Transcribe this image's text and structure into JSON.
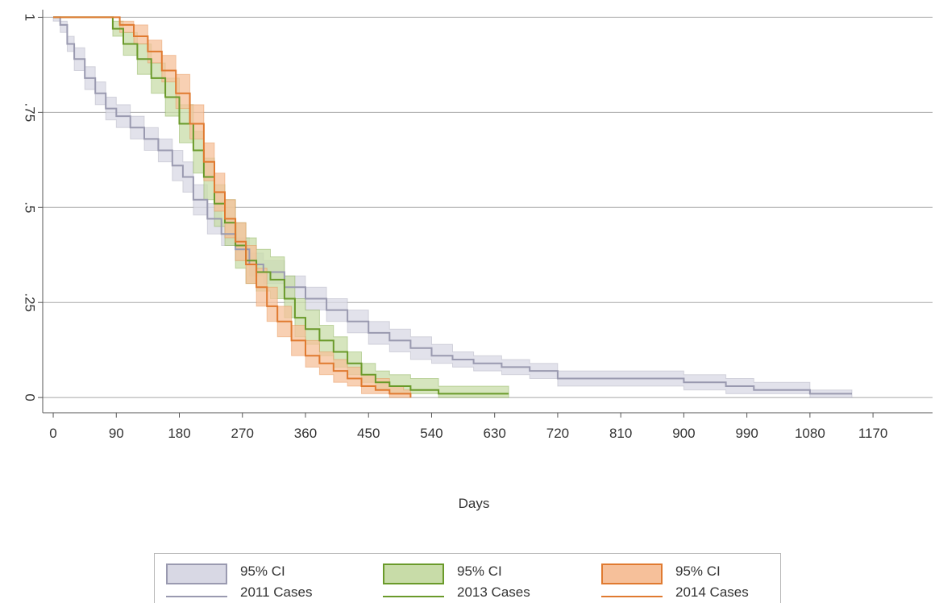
{
  "chart_data": {
    "type": "line",
    "title": "",
    "xlabel": "Days",
    "ylabel": "",
    "xlim": [
      -15,
      1255
    ],
    "ylim": [
      -0.04,
      1.02
    ],
    "x_ticks": [
      0,
      90,
      180,
      270,
      360,
      450,
      540,
      630,
      720,
      810,
      900,
      990,
      1080,
      1170
    ],
    "y_ticks": [
      0,
      0.25,
      0.5,
      0.75,
      1
    ],
    "y_tick_labels": [
      "0",
      ".25",
      ".5",
      ".75",
      "1"
    ],
    "grid": "horizontal",
    "legend_position": "bottom",
    "series": [
      {
        "name": "2011 Cases",
        "ci_label": "95% CI",
        "color": "#9a9ab0",
        "fill": "#d8d8e4",
        "points": [
          [
            0,
            1.0
          ],
          [
            10,
            0.98
          ],
          [
            20,
            0.93
          ],
          [
            30,
            0.89
          ],
          [
            45,
            0.84
          ],
          [
            60,
            0.8
          ],
          [
            75,
            0.76
          ],
          [
            90,
            0.74
          ],
          [
            110,
            0.71
          ],
          [
            130,
            0.68
          ],
          [
            150,
            0.65
          ],
          [
            170,
            0.61
          ],
          [
            185,
            0.58
          ],
          [
            200,
            0.52
          ],
          [
            220,
            0.47
          ],
          [
            240,
            0.43
          ],
          [
            260,
            0.39
          ],
          [
            280,
            0.35
          ],
          [
            300,
            0.33
          ],
          [
            330,
            0.29
          ],
          [
            360,
            0.26
          ],
          [
            390,
            0.23
          ],
          [
            420,
            0.2
          ],
          [
            450,
            0.17
          ],
          [
            480,
            0.15
          ],
          [
            510,
            0.13
          ],
          [
            540,
            0.11
          ],
          [
            570,
            0.1
          ],
          [
            600,
            0.09
          ],
          [
            640,
            0.08
          ],
          [
            680,
            0.07
          ],
          [
            720,
            0.05
          ],
          [
            800,
            0.05
          ],
          [
            900,
            0.04
          ],
          [
            960,
            0.03
          ],
          [
            1000,
            0.02
          ],
          [
            1080,
            0.01
          ],
          [
            1140,
            0.01
          ]
        ],
        "ci_lower": [
          [
            0,
            0.99
          ],
          [
            10,
            0.96
          ],
          [
            20,
            0.91
          ],
          [
            30,
            0.86
          ],
          [
            45,
            0.81
          ],
          [
            60,
            0.77
          ],
          [
            75,
            0.73
          ],
          [
            90,
            0.71
          ],
          [
            110,
            0.68
          ],
          [
            130,
            0.65
          ],
          [
            150,
            0.62
          ],
          [
            170,
            0.57
          ],
          [
            185,
            0.54
          ],
          [
            200,
            0.48
          ],
          [
            220,
            0.43
          ],
          [
            240,
            0.4
          ],
          [
            260,
            0.36
          ],
          [
            280,
            0.32
          ],
          [
            300,
            0.3
          ],
          [
            330,
            0.26
          ],
          [
            360,
            0.23
          ],
          [
            390,
            0.2
          ],
          [
            420,
            0.17
          ],
          [
            450,
            0.14
          ],
          [
            480,
            0.12
          ],
          [
            510,
            0.1
          ],
          [
            540,
            0.09
          ],
          [
            570,
            0.08
          ],
          [
            600,
            0.07
          ],
          [
            640,
            0.06
          ],
          [
            680,
            0.05
          ],
          [
            720,
            0.03
          ],
          [
            800,
            0.03
          ],
          [
            900,
            0.02
          ],
          [
            960,
            0.01
          ],
          [
            1000,
            0.01
          ],
          [
            1080,
            0.0
          ],
          [
            1140,
            0.0
          ]
        ],
        "ci_upper": [
          [
            0,
            1.0
          ],
          [
            10,
            0.99
          ],
          [
            20,
            0.95
          ],
          [
            30,
            0.92
          ],
          [
            45,
            0.87
          ],
          [
            60,
            0.83
          ],
          [
            75,
            0.79
          ],
          [
            90,
            0.77
          ],
          [
            110,
            0.74
          ],
          [
            130,
            0.71
          ],
          [
            150,
            0.68
          ],
          [
            170,
            0.65
          ],
          [
            185,
            0.62
          ],
          [
            200,
            0.56
          ],
          [
            220,
            0.51
          ],
          [
            240,
            0.46
          ],
          [
            260,
            0.42
          ],
          [
            280,
            0.38
          ],
          [
            300,
            0.36
          ],
          [
            330,
            0.32
          ],
          [
            360,
            0.29
          ],
          [
            390,
            0.26
          ],
          [
            420,
            0.23
          ],
          [
            450,
            0.2
          ],
          [
            480,
            0.18
          ],
          [
            510,
            0.16
          ],
          [
            540,
            0.14
          ],
          [
            570,
            0.12
          ],
          [
            600,
            0.11
          ],
          [
            640,
            0.1
          ],
          [
            680,
            0.09
          ],
          [
            720,
            0.07
          ],
          [
            800,
            0.07
          ],
          [
            900,
            0.06
          ],
          [
            960,
            0.05
          ],
          [
            1000,
            0.04
          ],
          [
            1080,
            0.02
          ],
          [
            1140,
            0.01
          ]
        ]
      },
      {
        "name": "2013 Cases",
        "ci_label": "95% CI",
        "color": "#6a9a2a",
        "fill": "#c8dca8",
        "points": [
          [
            0,
            1.0
          ],
          [
            75,
            1.0
          ],
          [
            85,
            0.97
          ],
          [
            100,
            0.93
          ],
          [
            120,
            0.89
          ],
          [
            140,
            0.84
          ],
          [
            160,
            0.79
          ],
          [
            180,
            0.72
          ],
          [
            200,
            0.65
          ],
          [
            215,
            0.58
          ],
          [
            230,
            0.51
          ],
          [
            245,
            0.46
          ],
          [
            260,
            0.4
          ],
          [
            275,
            0.36
          ],
          [
            290,
            0.33
          ],
          [
            310,
            0.31
          ],
          [
            330,
            0.26
          ],
          [
            345,
            0.21
          ],
          [
            360,
            0.18
          ],
          [
            380,
            0.15
          ],
          [
            400,
            0.12
          ],
          [
            420,
            0.09
          ],
          [
            440,
            0.06
          ],
          [
            460,
            0.04
          ],
          [
            480,
            0.03
          ],
          [
            510,
            0.02
          ],
          [
            550,
            0.01
          ],
          [
            650,
            0.01
          ]
        ],
        "ci_lower": [
          [
            0,
            1.0
          ],
          [
            75,
            1.0
          ],
          [
            85,
            0.95
          ],
          [
            100,
            0.9
          ],
          [
            120,
            0.85
          ],
          [
            140,
            0.8
          ],
          [
            160,
            0.74
          ],
          [
            180,
            0.67
          ],
          [
            200,
            0.59
          ],
          [
            215,
            0.52
          ],
          [
            230,
            0.45
          ],
          [
            245,
            0.4
          ],
          [
            260,
            0.34
          ],
          [
            275,
            0.3
          ],
          [
            290,
            0.28
          ],
          [
            310,
            0.26
          ],
          [
            330,
            0.21
          ],
          [
            345,
            0.16
          ],
          [
            360,
            0.14
          ],
          [
            380,
            0.11
          ],
          [
            400,
            0.08
          ],
          [
            420,
            0.06
          ],
          [
            440,
            0.04
          ],
          [
            460,
            0.02
          ],
          [
            480,
            0.01
          ],
          [
            510,
            0.01
          ],
          [
            550,
            0.0
          ],
          [
            650,
            0.0
          ]
        ],
        "ci_upper": [
          [
            0,
            1.0
          ],
          [
            75,
            1.0
          ],
          [
            85,
            0.99
          ],
          [
            100,
            0.96
          ],
          [
            120,
            0.93
          ],
          [
            140,
            0.88
          ],
          [
            160,
            0.84
          ],
          [
            180,
            0.77
          ],
          [
            200,
            0.7
          ],
          [
            215,
            0.63
          ],
          [
            230,
            0.56
          ],
          [
            245,
            0.52
          ],
          [
            260,
            0.46
          ],
          [
            275,
            0.42
          ],
          [
            290,
            0.39
          ],
          [
            310,
            0.37
          ],
          [
            330,
            0.32
          ],
          [
            345,
            0.26
          ],
          [
            360,
            0.23
          ],
          [
            380,
            0.19
          ],
          [
            400,
            0.16
          ],
          [
            420,
            0.12
          ],
          [
            440,
            0.09
          ],
          [
            460,
            0.07
          ],
          [
            480,
            0.06
          ],
          [
            510,
            0.05
          ],
          [
            550,
            0.03
          ],
          [
            650,
            0.01
          ]
        ]
      },
      {
        "name": "2014 Cases",
        "ci_label": "95% CI",
        "color": "#e07a30",
        "fill": "#f6c09a",
        "points": [
          [
            0,
            1.0
          ],
          [
            80,
            1.0
          ],
          [
            95,
            0.98
          ],
          [
            115,
            0.95
          ],
          [
            135,
            0.91
          ],
          [
            155,
            0.86
          ],
          [
            175,
            0.8
          ],
          [
            195,
            0.72
          ],
          [
            215,
            0.62
          ],
          [
            230,
            0.54
          ],
          [
            245,
            0.47
          ],
          [
            260,
            0.41
          ],
          [
            275,
            0.35
          ],
          [
            290,
            0.29
          ],
          [
            305,
            0.24
          ],
          [
            320,
            0.2
          ],
          [
            340,
            0.15
          ],
          [
            360,
            0.11
          ],
          [
            380,
            0.09
          ],
          [
            400,
            0.07
          ],
          [
            420,
            0.05
          ],
          [
            440,
            0.03
          ],
          [
            460,
            0.02
          ],
          [
            480,
            0.01
          ],
          [
            500,
            0.01
          ],
          [
            510,
            0.0
          ]
        ],
        "ci_lower": [
          [
            0,
            1.0
          ],
          [
            80,
            1.0
          ],
          [
            95,
            0.96
          ],
          [
            115,
            0.93
          ],
          [
            135,
            0.88
          ],
          [
            155,
            0.83
          ],
          [
            175,
            0.76
          ],
          [
            195,
            0.68
          ],
          [
            215,
            0.57
          ],
          [
            230,
            0.49
          ],
          [
            245,
            0.42
          ],
          [
            260,
            0.36
          ],
          [
            275,
            0.3
          ],
          [
            290,
            0.24
          ],
          [
            305,
            0.2
          ],
          [
            320,
            0.16
          ],
          [
            340,
            0.11
          ],
          [
            360,
            0.08
          ],
          [
            380,
            0.06
          ],
          [
            400,
            0.04
          ],
          [
            420,
            0.03
          ],
          [
            440,
            0.01
          ],
          [
            460,
            0.01
          ],
          [
            480,
            0.0
          ],
          [
            500,
            0.0
          ],
          [
            510,
            0.0
          ]
        ],
        "ci_upper": [
          [
            0,
            1.0
          ],
          [
            80,
            1.0
          ],
          [
            95,
            0.99
          ],
          [
            115,
            0.98
          ],
          [
            135,
            0.94
          ],
          [
            155,
            0.9
          ],
          [
            175,
            0.85
          ],
          [
            195,
            0.77
          ],
          [
            215,
            0.67
          ],
          [
            230,
            0.59
          ],
          [
            245,
            0.52
          ],
          [
            260,
            0.46
          ],
          [
            275,
            0.4
          ],
          [
            290,
            0.34
          ],
          [
            305,
            0.29
          ],
          [
            320,
            0.24
          ],
          [
            340,
            0.19
          ],
          [
            360,
            0.15
          ],
          [
            380,
            0.12
          ],
          [
            400,
            0.1
          ],
          [
            420,
            0.08
          ],
          [
            440,
            0.06
          ],
          [
            460,
            0.05
          ],
          [
            480,
            0.03
          ],
          [
            500,
            0.02
          ],
          [
            510,
            0.01
          ]
        ]
      }
    ]
  }
}
